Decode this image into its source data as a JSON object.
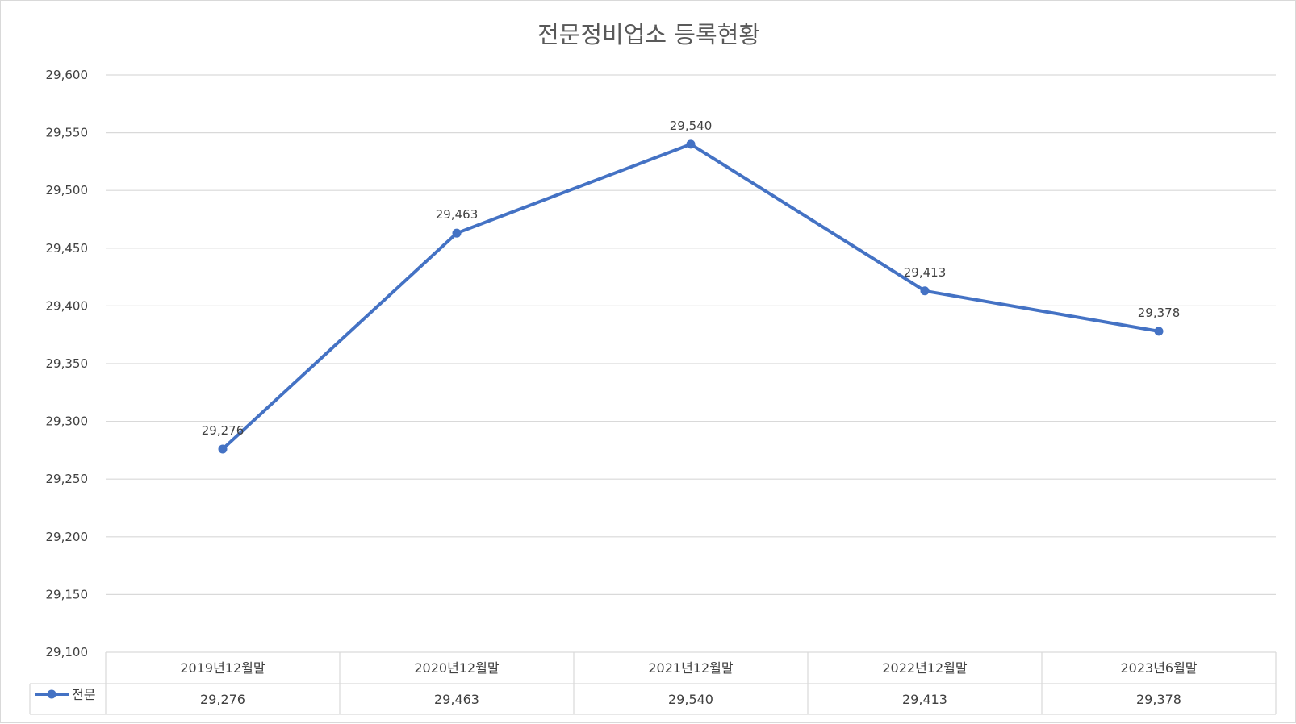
{
  "chart_data": {
    "type": "line",
    "title": "전문정비업소 등록현황",
    "categories": [
      "2019년12월말",
      "2020년12월말",
      "2021년12월말",
      "2022년12월말",
      "2023년6월말"
    ],
    "series": [
      {
        "name": "전문",
        "values": [
          29276,
          29463,
          29540,
          29413,
          29378
        ],
        "color": "#4472c4"
      }
    ],
    "data_labels": [
      "29,276",
      "29,463",
      "29,540",
      "29,413",
      "29,378"
    ],
    "table_values": [
      "29,276",
      "29,463",
      "29,540",
      "29,413",
      "29,378"
    ],
    "ylim": [
      29100,
      29600
    ],
    "yticks": [
      29100,
      29150,
      29200,
      29250,
      29300,
      29350,
      29400,
      29450,
      29500,
      29550,
      29600
    ],
    "ytick_labels": [
      "29,100",
      "29,150",
      "29,200",
      "29,250",
      "29,300",
      "29,350",
      "29,400",
      "29,450",
      "29,500",
      "29,550",
      "29,600"
    ],
    "grid": true,
    "legend": "data-table",
    "xlabel": "",
    "ylabel": ""
  }
}
